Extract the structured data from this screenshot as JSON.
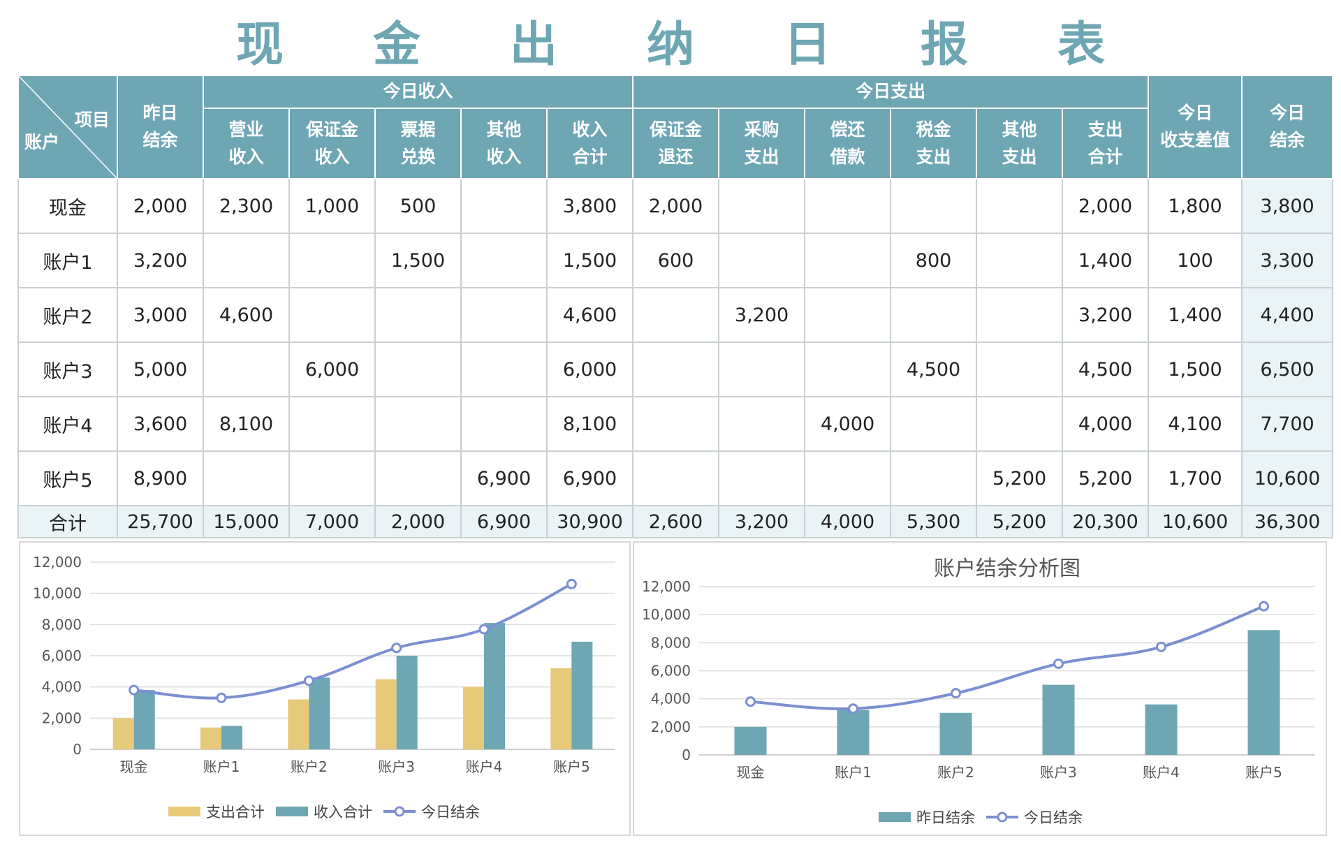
{
  "title": "现金出纳日报表",
  "colors": {
    "accent": "#6ea6b4",
    "income_bar": "#6ea6b4",
    "expense_bar": "#e7c97a",
    "balance_line": "#7b8fd1"
  },
  "table": {
    "corner": {
      "item": "项目",
      "account": "账户"
    },
    "yesterday_balance": "昨日\n结余",
    "income_group": "今日收入",
    "income_cols": [
      "营业\n收入",
      "保证金\n收入",
      "票据\n兑换",
      "其他\n收入",
      "收入\n合计"
    ],
    "expense_group": "今日支出",
    "expense_cols": [
      "保证金\n退还",
      "采购\n支出",
      "偿还\n借款",
      "税金\n支出",
      "其他\n支出",
      "支出\n合计"
    ],
    "diff": "今日\n收支差值",
    "today_balance": "今日\n结余",
    "rows": [
      [
        "现金",
        "2,000",
        "2,300",
        "1,000",
        "500",
        "",
        "3,800",
        "2,000",
        "",
        "",
        "",
        "",
        "2,000",
        "1,800",
        "3,800"
      ],
      [
        "账户1",
        "3,200",
        "",
        "",
        "1,500",
        "",
        "1,500",
        "600",
        "",
        "",
        "800",
        "",
        "1,400",
        "100",
        "3,300"
      ],
      [
        "账户2",
        "3,000",
        "4,600",
        "",
        "",
        "",
        "4,600",
        "",
        "3,200",
        "",
        "",
        "",
        "3,200",
        "1,400",
        "4,400"
      ],
      [
        "账户3",
        "5,000",
        "",
        "6,000",
        "",
        "",
        "6,000",
        "",
        "",
        "",
        "4,500",
        "",
        "4,500",
        "1,500",
        "6,500"
      ],
      [
        "账户4",
        "3,600",
        "8,100",
        "",
        "",
        "",
        "8,100",
        "",
        "",
        "4,000",
        "",
        "",
        "4,000",
        "4,100",
        "7,700"
      ],
      [
        "账户5",
        "8,900",
        "",
        "",
        "",
        "6,900",
        "6,900",
        "",
        "",
        "",
        "",
        "5,200",
        "5,200",
        "1,700",
        "10,600"
      ]
    ],
    "total_row": [
      "合计",
      "25,700",
      "15,000",
      "7,000",
      "2,000",
      "6,900",
      "30,900",
      "2,600",
      "3,200",
      "4,000",
      "5,300",
      "5,200",
      "20,300",
      "10,600",
      "36,300"
    ]
  },
  "chart_data": [
    {
      "type": "bar",
      "title": "",
      "categories": [
        "现金",
        "账户1",
        "账户2",
        "账户3",
        "账户4",
        "账户5"
      ],
      "series": [
        {
          "name": "支出合计",
          "kind": "bar",
          "values": [
            2000,
            1400,
            3200,
            4500,
            4000,
            5200
          ]
        },
        {
          "name": "收入合计",
          "kind": "bar",
          "values": [
            3800,
            1500,
            4600,
            6000,
            8100,
            6900
          ]
        },
        {
          "name": "今日结余",
          "kind": "line",
          "values": [
            3800,
            3300,
            4400,
            6500,
            7700,
            10600
          ]
        }
      ],
      "ylim": [
        0,
        12000
      ],
      "yticks": [
        "0",
        "2,000",
        "4,000",
        "6,000",
        "8,000",
        "10,000",
        "12,000"
      ],
      "grid": true,
      "legend": "bottom"
    },
    {
      "type": "bar",
      "title": "账户结余分析图",
      "categories": [
        "现金",
        "账户1",
        "账户2",
        "账户3",
        "账户4",
        "账户5"
      ],
      "series": [
        {
          "name": "昨日结余",
          "kind": "bar",
          "values": [
            2000,
            3200,
            3000,
            5000,
            3600,
            8900
          ]
        },
        {
          "name": "今日结余",
          "kind": "line",
          "values": [
            3800,
            3300,
            4400,
            6500,
            7700,
            10600
          ]
        }
      ],
      "ylim": [
        0,
        12000
      ],
      "yticks": [
        "0",
        "2,000",
        "4,000",
        "6,000",
        "8,000",
        "10,000",
        "12,000"
      ],
      "grid": true,
      "legend": "bottom"
    }
  ]
}
